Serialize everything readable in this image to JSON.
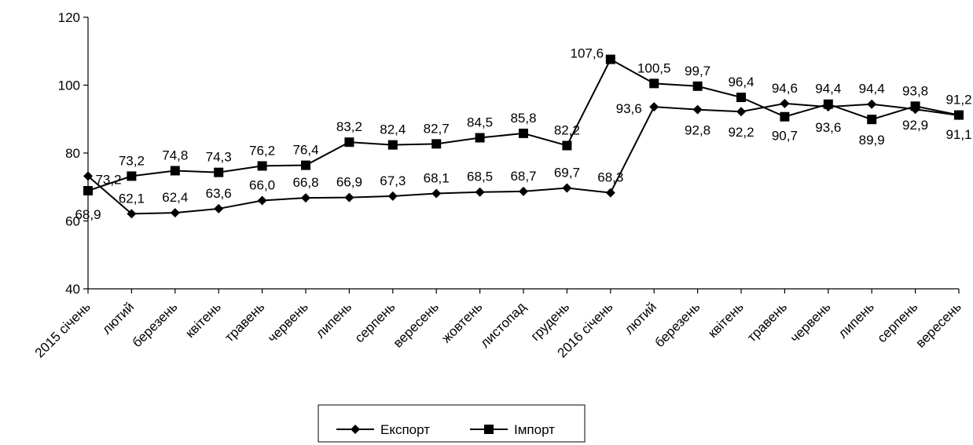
{
  "chart_data": {
    "type": "line",
    "categories": [
      "2015 січень",
      "лютий",
      "березень",
      "квітень",
      "травень",
      "червень",
      "липень",
      "серпень",
      "вересень",
      "жовтень",
      "листопад",
      "грудень",
      "2016 січень",
      "лютий",
      "березень",
      "квітень",
      "травень",
      "червень",
      "липень",
      "серпень",
      "вересень"
    ],
    "series": [
      {
        "name": "Експорт",
        "marker": "diamond",
        "color": "#000000",
        "values": [
          73.2,
          62.1,
          62.4,
          63.6,
          66.0,
          66.8,
          66.9,
          67.3,
          68.1,
          68.5,
          68.7,
          69.7,
          68.3,
          93.6,
          92.8,
          92.2,
          94.6,
          93.6,
          94.4,
          92.9,
          91.1
        ],
        "labels": [
          "73,2",
          "62,1",
          "62,4",
          "63,6",
          "66,0",
          "66,8",
          "66,9",
          "67,3",
          "68,1",
          "68,5",
          "68,7",
          "69,7",
          "68,3",
          "93,6",
          "92,8",
          "92,2",
          "94,6",
          "93,6",
          "94,4",
          "92,9",
          "91,1"
        ]
      },
      {
        "name": "Імпорт",
        "marker": "square",
        "color": "#000000",
        "values": [
          68.9,
          73.2,
          74.8,
          74.3,
          76.2,
          76.4,
          83.2,
          82.4,
          82.7,
          84.5,
          85.8,
          82.2,
          107.6,
          100.5,
          99.7,
          96.4,
          90.7,
          94.4,
          89.9,
          93.8,
          91.2
        ],
        "labels": [
          "68,9",
          "73,2",
          "74,8",
          "74,3",
          "76,2",
          "76,4",
          "83,2",
          "82,4",
          "82,7",
          "84,5",
          "85,8",
          "82,2",
          "107,6",
          "100,5",
          "99,7",
          "96,4",
          "90,7",
          "94,4",
          "89,9",
          "93,8",
          "91,2"
        ]
      }
    ],
    "yticks": [
      40,
      60,
      80,
      100,
      120
    ],
    "ytick_labels": [
      "40",
      "60",
      "80",
      "100",
      "120"
    ],
    "ylim": [
      40,
      120
    ],
    "grid": false,
    "legend_position": "bottom"
  }
}
